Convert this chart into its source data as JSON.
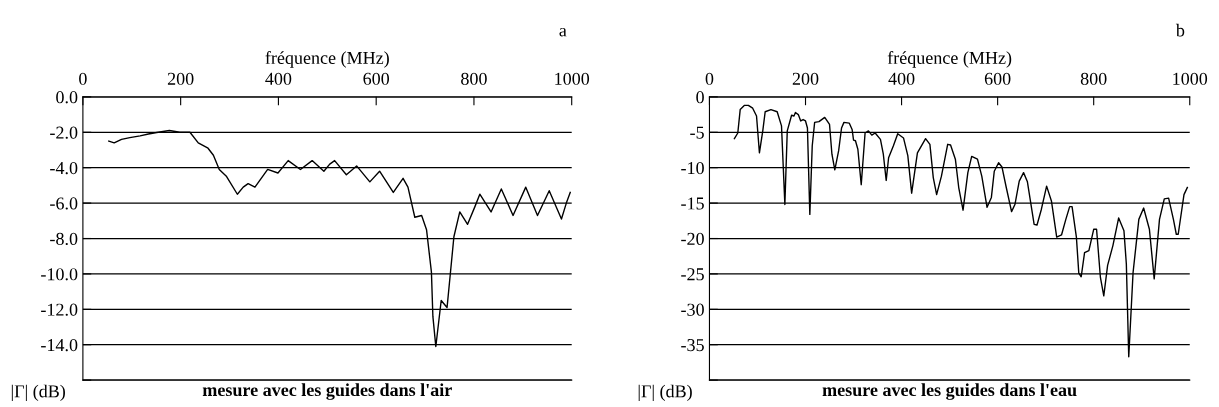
{
  "chart_data": [
    {
      "type": "line",
      "title": "mesure avec les guides dans l'air",
      "xlabel": "fréquence (MHz)",
      "ylabel": "|Γ| (dB)",
      "annotations": [
        "a"
      ],
      "series": [
        {
          "color": "#000000",
          "x": [
            53,
            64,
            79,
            96,
            117,
            134,
            154,
            177,
            198,
            219,
            236,
            256,
            267,
            279,
            294,
            316,
            328,
            338,
            352,
            378,
            399,
            420,
            445,
            469,
            493,
            505,
            515,
            539,
            560,
            587,
            607,
            635,
            655,
            665,
            679,
            693,
            703,
            713,
            716,
            722,
            733,
            745,
            759,
            771,
            787,
            802,
            812,
            835,
            856,
            880,
            906,
            930,
            954,
            979,
            989,
            997
          ],
          "values": [
            -2.5,
            -2.6,
            -2.4,
            -2.3,
            -2.2,
            -2.1,
            -2.0,
            -1.9,
            -2.0,
            -2.0,
            -2.6,
            -2.9,
            -3.3,
            -4.1,
            -4.5,
            -5.5,
            -5.1,
            -4.9,
            -5.1,
            -4.1,
            -4.3,
            -3.6,
            -4.1,
            -3.6,
            -4.2,
            -3.8,
            -3.6,
            -4.4,
            -3.9,
            -4.8,
            -4.2,
            -5.4,
            -4.6,
            -5.1,
            -6.8,
            -6.7,
            -7.5,
            -9.9,
            -12.4,
            -14.1,
            -11.5,
            -11.9,
            -7.9,
            -6.5,
            -7.2,
            -6.2,
            -5.5,
            -6.5,
            -5.2,
            -6.7,
            -5.1,
            -6.7,
            -5.3,
            -6.9,
            -6.0,
            -5.4
          ]
        }
      ],
      "xlim": [
        0,
        1000
      ],
      "xticks": [
        0,
        200,
        400,
        600,
        800,
        1000
      ],
      "ylim": [
        -16,
        0
      ],
      "yticks": [
        {
          "value": 0,
          "label": "0.0"
        },
        {
          "value": -2,
          "label": "-2.0"
        },
        {
          "value": -4,
          "label": "-4.0"
        },
        {
          "value": -6,
          "label": "-6.0"
        },
        {
          "value": -8,
          "label": "-8.0"
        },
        {
          "value": -10,
          "label": "-10.0"
        },
        {
          "value": -12,
          "label": "-12.0"
        },
        {
          "value": -14,
          "label": "-14.0"
        },
        {
          "value": -16,
          "label": null
        }
      ],
      "grid": "y",
      "legend": false,
      "marker": "none",
      "line_style": "solid"
    },
    {
      "type": "line",
      "title": "mesure avec les guides dans l'eau",
      "xlabel": "fréquence (MHz)",
      "ylabel": "|Γ| (dB)",
      "annotations": [
        "b"
      ],
      "series": [
        {
          "color": "#000000",
          "x": [
            52,
            59,
            64,
            73,
            81,
            90,
            98,
            104,
            111,
            116,
            128,
            141,
            150,
            157,
            162,
            171,
            176,
            179,
            185,
            190,
            195,
            200,
            204,
            209,
            214,
            219,
            228,
            240,
            250,
            255,
            261,
            269,
            275,
            280,
            291,
            297,
            300,
            304,
            309,
            316,
            324,
            331,
            338,
            345,
            356,
            362,
            368,
            373,
            383,
            392,
            404,
            413,
            421,
            433,
            450,
            459,
            466,
            473,
            483,
            496,
            502,
            512,
            519,
            528,
            538,
            546,
            558,
            567,
            578,
            587,
            593,
            602,
            609,
            618,
            629,
            636,
            645,
            654,
            662,
            676,
            682,
            691,
            702,
            712,
            723,
            733,
            742,
            750,
            755,
            764,
            769,
            774,
            781,
            790,
            800,
            806,
            814,
            821,
            829,
            840,
            852,
            863,
            868,
            873,
            882,
            894,
            904,
            916,
            926,
            937,
            947,
            956,
            966,
            972,
            976,
            988,
            995
          ],
          "values": [
            -5.9,
            -5.1,
            -1.8,
            -1.2,
            -1.2,
            -1.6,
            -2.7,
            -7.9,
            -4.8,
            -2.1,
            -1.8,
            -2.1,
            -4.1,
            -15.2,
            -4.8,
            -2.6,
            -2.7,
            -2.2,
            -2.5,
            -3.4,
            -3.2,
            -3.4,
            -4.4,
            -16.6,
            -6.9,
            -3.6,
            -3.5,
            -2.9,
            -3.9,
            -8.1,
            -10.3,
            -7.6,
            -4.4,
            -3.6,
            -3.7,
            -4.6,
            -6.1,
            -6.2,
            -7.4,
            -12.4,
            -5.1,
            -4.8,
            -5.4,
            -5.1,
            -6.0,
            -8.1,
            -11.8,
            -8.6,
            -6.9,
            -5.2,
            -5.8,
            -8.3,
            -13.6,
            -7.9,
            -5.9,
            -6.7,
            -11.4,
            -13.8,
            -11.2,
            -6.7,
            -6.8,
            -8.8,
            -12.8,
            -16.0,
            -10.7,
            -8.4,
            -8.8,
            -11.2,
            -15.6,
            -14.2,
            -10.5,
            -9.3,
            -9.9,
            -12.8,
            -16.2,
            -15.2,
            -11.9,
            -10.7,
            -12.0,
            -18.0,
            -18.1,
            -15.9,
            -12.6,
            -14.7,
            -19.8,
            -19.5,
            -17.3,
            -15.5,
            -15.5,
            -19.8,
            -24.9,
            -25.4,
            -22.0,
            -21.7,
            -18.7,
            -18.7,
            -25.5,
            -28.1,
            -23.8,
            -21.0,
            -17.1,
            -18.9,
            -23.6,
            -36.7,
            -24.8,
            -17.3,
            -15.7,
            -18.7,
            -25.7,
            -17.3,
            -14.4,
            -14.3,
            -17.3,
            -19.4,
            -19.4,
            -13.8,
            -12.8
          ]
        }
      ],
      "xlim": [
        0,
        1000
      ],
      "xticks": [
        0,
        200,
        400,
        600,
        800,
        1000
      ],
      "ylim": [
        -40,
        0
      ],
      "yticks": [
        {
          "value": 0,
          "label": "0"
        },
        {
          "value": -5,
          "label": "-5"
        },
        {
          "value": -10,
          "label": "-10"
        },
        {
          "value": -15,
          "label": "-15"
        },
        {
          "value": -20,
          "label": "-20"
        },
        {
          "value": -25,
          "label": "-25"
        },
        {
          "value": -30,
          "label": "-30"
        },
        {
          "value": -35,
          "label": "-35"
        },
        {
          "value": -40,
          "label": null
        }
      ],
      "grid": "y",
      "legend": false,
      "marker": "none",
      "line_style": "solid"
    }
  ]
}
